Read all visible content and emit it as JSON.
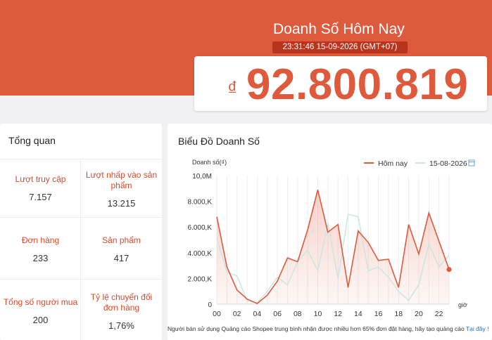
{
  "header": {
    "title": "Doanh Số Hôm Nay",
    "timestamp": "23:31:46 15-09-2026 (GMT+07)",
    "currency_symbol": "₫",
    "amount": "92.800.819"
  },
  "overview": {
    "title": "Tổng quan",
    "metrics": [
      {
        "label": "Lượt truy cập",
        "value": "7.157"
      },
      {
        "label": "Lượt nhấp vào sản phẩm",
        "value": "13.215"
      },
      {
        "label": "Đơn hàng",
        "value": "233"
      },
      {
        "label": "Sản phẩm",
        "value": "417"
      },
      {
        "label": "Tổng số người mua",
        "value": "200"
      },
      {
        "label": "Tỷ lệ chuyển đổi đơn hàng",
        "value": "1,76%"
      }
    ]
  },
  "chart_panel": {
    "title": "Biểu Đồ Doanh Số",
    "note": "Người bán sử dụng Quảng cáo Shopee trung bình nhận được nhiều hơn 65% đơn đặt hàng, hãy tạo quảng cáo",
    "note_link": "Tại đây !"
  },
  "colors": {
    "brand": "#de5a3c",
    "brand_dark": "#b9331d",
    "compare_line": "#c8e6e3"
  },
  "chart_data": {
    "type": "area",
    "ylabel": "Doanh số(₫)",
    "xlabel": "giờ",
    "ylim": [
      0,
      10000000
    ],
    "y_ticks": [
      "0",
      "2.000,K",
      "4.000,K",
      "6.000,K",
      "8.000,K",
      "10,0M"
    ],
    "x": [
      0,
      1,
      2,
      3,
      4,
      5,
      6,
      7,
      8,
      9,
      10,
      11,
      12,
      13,
      14,
      15,
      16,
      17,
      18,
      19,
      20,
      21,
      22,
      23
    ],
    "x_tick_labels": [
      "00",
      "02",
      "04",
      "06",
      "08",
      "10",
      "12",
      "14",
      "16",
      "18",
      "20",
      "22"
    ],
    "grid": true,
    "legend_position": "top-right",
    "series": [
      {
        "name": "Hôm nay",
        "color": "#de5a3c",
        "values": [
          6800000,
          2900000,
          1100000,
          400000,
          50000,
          700000,
          1800000,
          3600000,
          3300000,
          5800000,
          8900000,
          5600000,
          6200000,
          1300000,
          5700000,
          4800000,
          3400000,
          3500000,
          1300000,
          6200000,
          3900000,
          7100000,
          4900000,
          2700000
        ]
      },
      {
        "name": "15-08-2026",
        "color": "#c8e6e3",
        "values": [
          5200000,
          2500000,
          2200000,
          300000,
          100000,
          1000000,
          2100000,
          1500000,
          3300000,
          4200000,
          2600000,
          6300000,
          2000000,
          7000000,
          6800000,
          2600000,
          2900000,
          2100000,
          1000000,
          300000,
          1500000,
          4700000,
          2900000,
          3800000
        ]
      }
    ]
  }
}
